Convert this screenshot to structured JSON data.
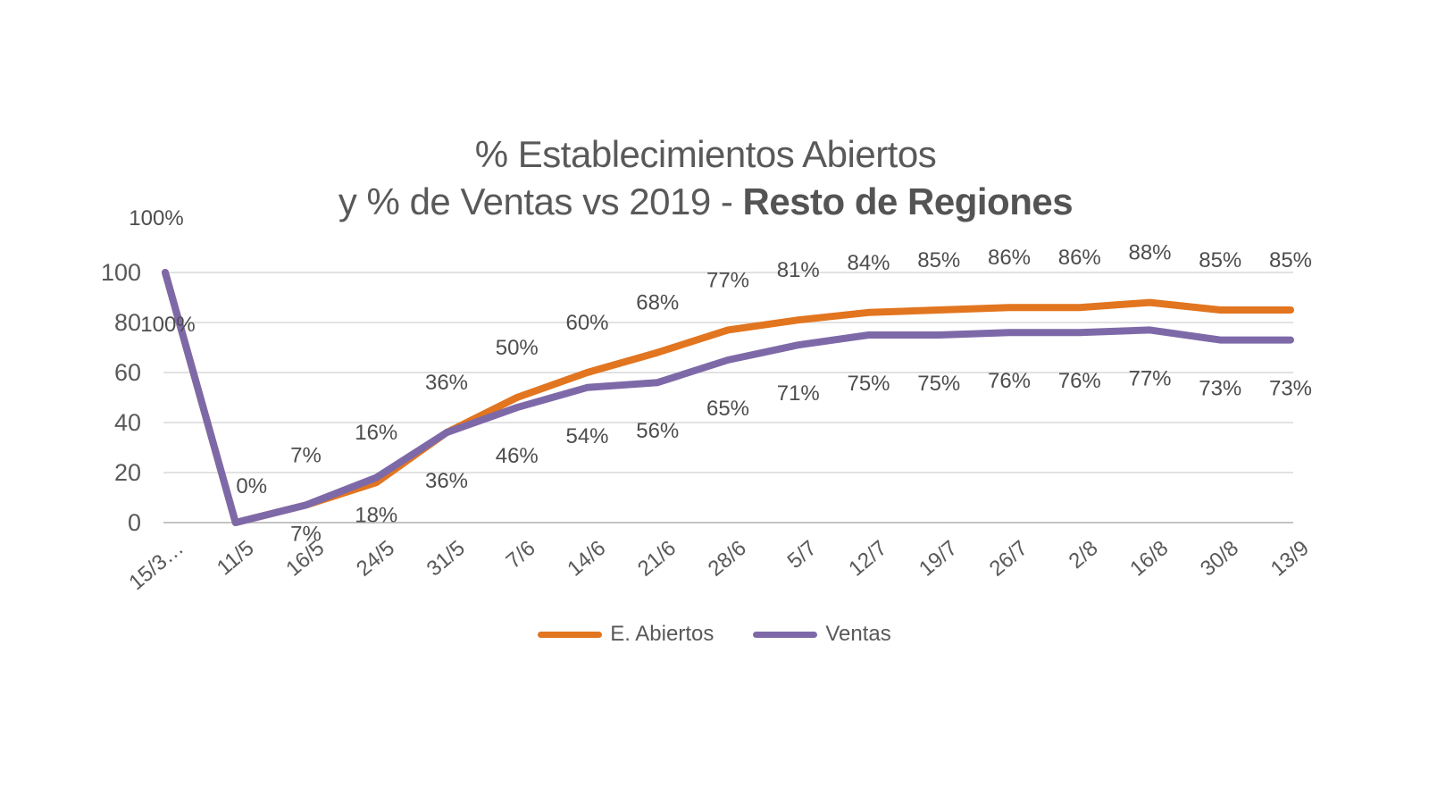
{
  "title": {
    "line1": "% Establecimientos Abiertos",
    "line2_normal": "y % de Ventas vs 2019 - ",
    "line2_bold": "Resto de Regiones"
  },
  "legend": {
    "items": [
      {
        "label": "E. Abiertos",
        "color": "#E2751F"
      },
      {
        "label": "Ventas",
        "color": "#7E69A8"
      }
    ]
  },
  "chart_data": {
    "type": "line",
    "title": "% Establecimientos Abiertos y % de Ventas vs 2019 - Resto de Regiones",
    "categories": [
      "15/3…",
      "11/5",
      "16/5",
      "24/5",
      "31/5",
      "7/6",
      "14/6",
      "21/6",
      "28/6",
      "5/7",
      "12/7",
      "19/7",
      "26/7",
      "2/8",
      "16/8",
      "30/8",
      "13/9"
    ],
    "series": [
      {
        "name": "E. Abiertos",
        "color": "#E2751F",
        "values": [
          100,
          0,
          7,
          16,
          36,
          50,
          60,
          68,
          77,
          81,
          84,
          85,
          86,
          86,
          88,
          85,
          85
        ],
        "label_suffix": "%"
      },
      {
        "name": "Ventas",
        "color": "#7E69A8",
        "values": [
          100,
          0,
          7,
          18,
          36,
          46,
          54,
          56,
          65,
          71,
          75,
          75,
          76,
          76,
          77,
          73,
          73
        ],
        "label_suffix": "%"
      }
    ],
    "y_axis": {
      "ticks": [
        0,
        20,
        40,
        60,
        80,
        100
      ],
      "ylim": [
        0,
        100
      ]
    },
    "grid": true,
    "gridline_color": "#D9D9D9",
    "zero_line_color": "#C3C3C3",
    "legend_position": "bottom",
    "data_labels": true
  }
}
